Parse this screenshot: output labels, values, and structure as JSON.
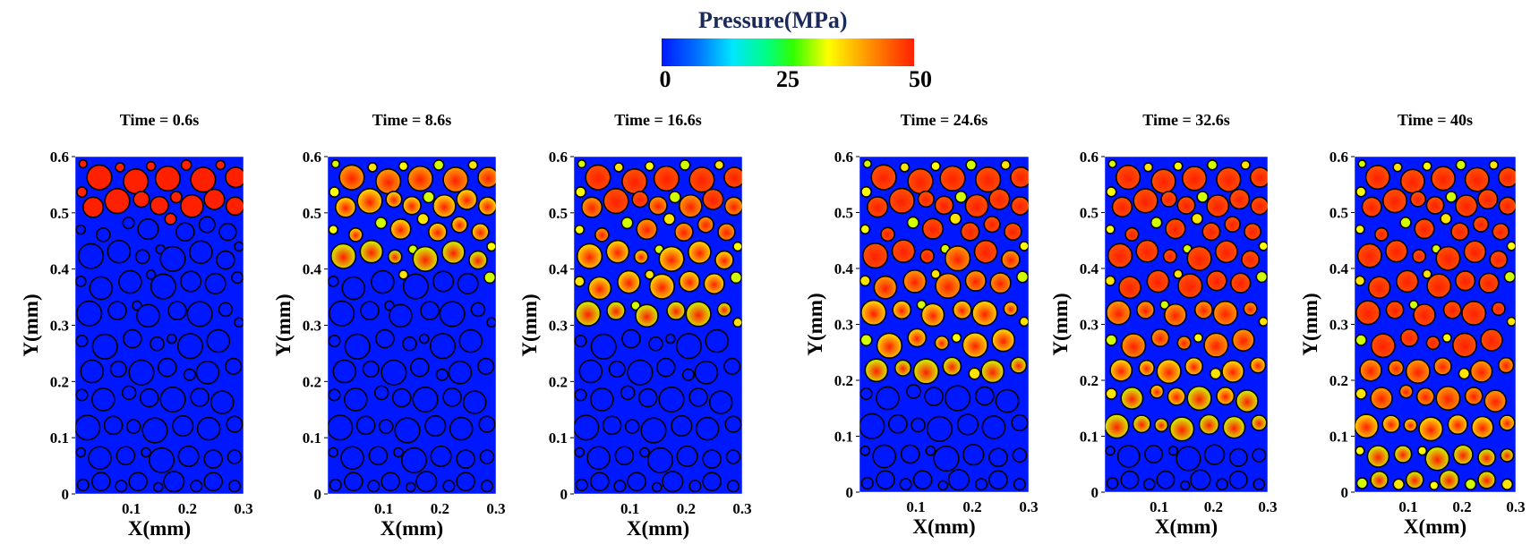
{
  "colorbar": {
    "title": "Pressure(MPa)",
    "ticks": [
      "0",
      "25",
      "50"
    ],
    "range": [
      0,
      50
    ],
    "colors": [
      "#0018ff",
      "#00e6ff",
      "#30ff00",
      "#ffff00",
      "#ffa000",
      "#ff2000"
    ]
  },
  "chart_data": [
    {
      "type": "heatmap",
      "title": "Time = 0.6s",
      "time_s": 0.6,
      "front_y_mm": 0.48,
      "xlabel": "X(mm)",
      "ylabel": "Y(mm)",
      "xticks": [
        "0.1",
        "0.2",
        "0.3"
      ],
      "yticks": [
        "0",
        "0.1",
        "0.2",
        "0.3",
        "0.4",
        "0.5",
        "0.6"
      ],
      "xlim": [
        0,
        0.3
      ],
      "ylim": [
        0,
        0.6
      ]
    },
    {
      "type": "heatmap",
      "title": "Time = 8.6s",
      "time_s": 8.6,
      "front_y_mm": 0.38,
      "xlabel": "X(mm)",
      "ylabel": "Y(mm)",
      "xticks": [
        "0.1",
        "0.2",
        "0.3"
      ],
      "yticks": [
        "0",
        "0.1",
        "0.2",
        "0.3",
        "0.4",
        "0.5",
        "0.6"
      ],
      "xlim": [
        0,
        0.3
      ],
      "ylim": [
        0,
        0.6
      ]
    },
    {
      "type": "heatmap",
      "title": "Time = 16.6s",
      "time_s": 16.6,
      "front_y_mm": 0.28,
      "xlabel": "X(mm)",
      "ylabel": "Y(mm)",
      "xticks": [
        "0.1",
        "0.2",
        "0.3"
      ],
      "yticks": [
        "0",
        "0.1",
        "0.2",
        "0.3",
        "0.4",
        "0.5",
        "0.6"
      ],
      "xlim": [
        0,
        0.3
      ],
      "ylim": [
        0,
        0.6
      ]
    },
    {
      "type": "heatmap",
      "title": "Time = 24.6s",
      "time_s": 24.6,
      "front_y_mm": 0.18,
      "xlabel": "X(mm)",
      "ylabel": "Y(mm)",
      "xticks": [
        "0.1",
        "0.2",
        "0.3"
      ],
      "yticks": [
        "0",
        "0.1",
        "0.2",
        "0.3",
        "0.4",
        "0.5",
        "0.6"
      ],
      "xlim": [
        0,
        0.3
      ],
      "ylim": [
        0,
        0.6
      ]
    },
    {
      "type": "heatmap",
      "title": "Time = 32.6s",
      "time_s": 32.6,
      "front_y_mm": 0.09,
      "xlabel": "X(mm)",
      "ylabel": "Y(mm)",
      "xticks": [
        "0.1",
        "0.2",
        "0.3"
      ],
      "yticks": [
        "0",
        "0.1",
        "0.2",
        "0.3",
        "0.4",
        "0.5",
        "0.6"
      ],
      "xlim": [
        0,
        0.3
      ],
      "ylim": [
        0,
        0.6
      ]
    },
    {
      "type": "heatmap",
      "title": "Time = 40s",
      "time_s": 40,
      "front_y_mm": 0.0,
      "xlabel": "X(mm)",
      "ylabel": "Y(mm)",
      "xticks": [
        "0.1",
        "0.2",
        "0.3"
      ],
      "yticks": [
        "0",
        "0.1",
        "0.2",
        "0.3",
        "0.4",
        "0.5",
        "0.6"
      ],
      "xlim": [
        0,
        0.3
      ],
      "ylim": [
        0,
        0.6
      ]
    }
  ]
}
